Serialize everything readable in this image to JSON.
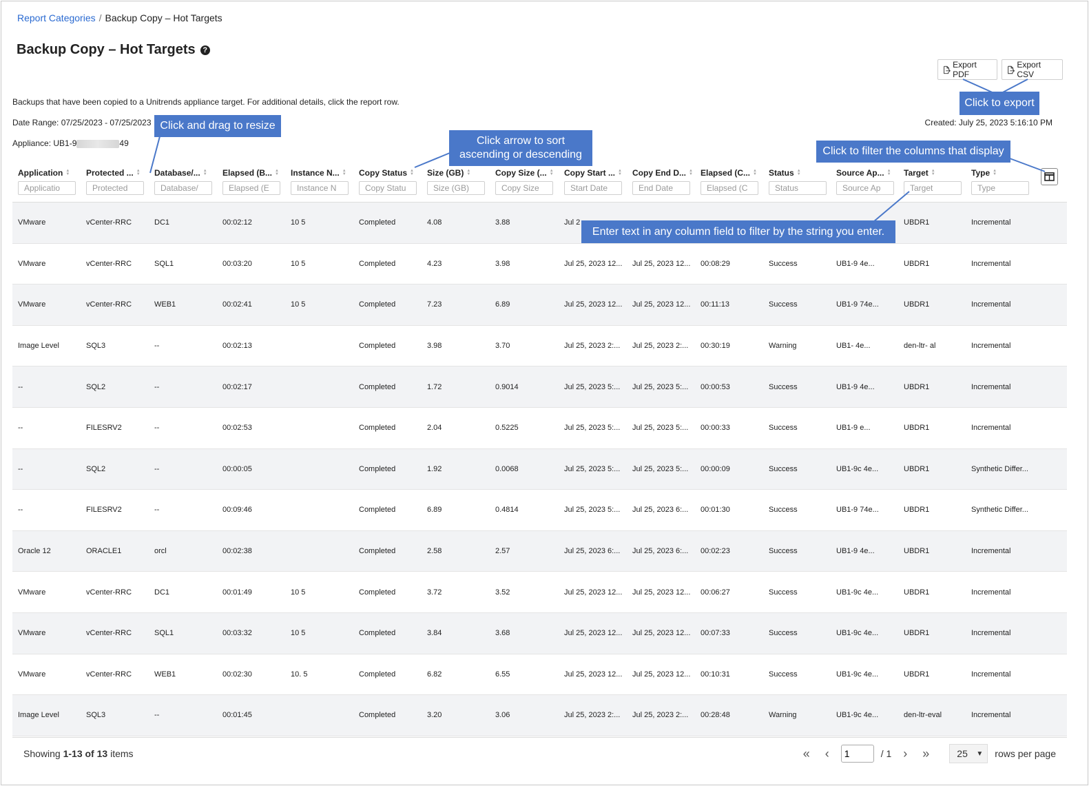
{
  "breadcrumb": {
    "parent": "Report Categories",
    "separator": "/",
    "current": "Backup Copy – Hot Targets"
  },
  "page_title": "Backup Copy – Hot Targets",
  "help_glyph": "?",
  "export": {
    "pdf_label": "Export PDF",
    "csv_label": "Export CSV"
  },
  "info": {
    "description": "Backups that have been copied to a Unitrends appliance target. For additional details, click the report row.",
    "date_range": "Date Range: 07/25/2023 - 07/25/2023",
    "appliance_prefix": "Appliance: UB1-9",
    "appliance_suffix": "49",
    "created": "Created: July 25, 2023 5:16:10 PM"
  },
  "callouts": {
    "export": "Click to export",
    "resize": "Click and drag to resize",
    "sort": "Click arrow to sort ascending or descending",
    "columns": "Click to filter the columns that display",
    "filter": "Enter text in any column field to filter by the string you enter."
  },
  "columns": [
    {
      "label": "Application",
      "placeholder": "Applicatio"
    },
    {
      "label": "Protected ...",
      "placeholder": "Protected"
    },
    {
      "label": "Database/...",
      "placeholder": "Database/"
    },
    {
      "label": "Elapsed (B...",
      "placeholder": "Elapsed (E"
    },
    {
      "label": "Instance N...",
      "placeholder": "Instance N"
    },
    {
      "label": "Copy Status",
      "placeholder": "Copy Statu"
    },
    {
      "label": "Size (GB)",
      "placeholder": "Size (GB)"
    },
    {
      "label": "Copy Size (...",
      "placeholder": "Copy Size"
    },
    {
      "label": "Copy Start ...",
      "placeholder": "Start Date"
    },
    {
      "label": "Copy End D...",
      "placeholder": "End Date"
    },
    {
      "label": "Elapsed (C...",
      "placeholder": "Elapsed (C"
    },
    {
      "label": "Status",
      "placeholder": "Status"
    },
    {
      "label": "Source Ap...",
      "placeholder": "Source Ap"
    },
    {
      "label": "Target",
      "placeholder": "Target"
    },
    {
      "label": "Type",
      "placeholder": "Type"
    }
  ],
  "rows": [
    [
      "VMware",
      "vCenter-RRC",
      "DC1",
      "00:02:12",
      "10 5",
      "Completed",
      "4.08",
      "3.88",
      "Jul 2",
      "",
      "",
      "",
      "",
      "UBDR1",
      "Incremental"
    ],
    [
      "VMware",
      "vCenter-RRC",
      "SQL1",
      "00:03:20",
      "10 5",
      "Completed",
      "4.23",
      "3.98",
      "Jul 25, 2023 12...",
      "Jul 25, 2023 12...",
      "00:08:29",
      "Success",
      "UB1-9 4e...",
      "UBDR1",
      "Incremental"
    ],
    [
      "VMware",
      "vCenter-RRC",
      "WEB1",
      "00:02:41",
      "10 5",
      "Completed",
      "7.23",
      "6.89",
      "Jul 25, 2023 12...",
      "Jul 25, 2023 12...",
      "00:11:13",
      "Success",
      "UB1-9 74e...",
      "UBDR1",
      "Incremental"
    ],
    [
      "Image Level",
      "SQL3",
      "--",
      "00:02:13",
      "",
      "Completed",
      "3.98",
      "3.70",
      "Jul 25, 2023 2:...",
      "Jul 25, 2023 2:...",
      "00:30:19",
      "Warning",
      "UB1- 4e...",
      "den-ltr- al",
      "Incremental"
    ],
    [
      "--",
      "SQL2",
      "--",
      "00:02:17",
      "",
      "Completed",
      "1.72",
      "0.9014",
      "Jul 25, 2023 5:...",
      "Jul 25, 2023 5:...",
      "00:00:53",
      "Success",
      "UB1-9 4e...",
      "UBDR1",
      "Incremental"
    ],
    [
      "--",
      "FILESRV2",
      "--",
      "00:02:53",
      "",
      "Completed",
      "2.04",
      "0.5225",
      "Jul 25, 2023 5:...",
      "Jul 25, 2023 5:...",
      "00:00:33",
      "Success",
      "UB1-9 e...",
      "UBDR1",
      "Incremental"
    ],
    [
      "--",
      "SQL2",
      "--",
      "00:00:05",
      "",
      "Completed",
      "1.92",
      "0.0068",
      "Jul 25, 2023 5:...",
      "Jul 25, 2023 5:...",
      "00:00:09",
      "Success",
      "UB1-9c 4e...",
      "UBDR1",
      "Synthetic Differ..."
    ],
    [
      "--",
      "FILESRV2",
      "--",
      "00:09:46",
      "",
      "Completed",
      "6.89",
      "0.4814",
      "Jul 25, 2023 5:...",
      "Jul 25, 2023 6:...",
      "00:01:30",
      "Success",
      "UB1-9 74e...",
      "UBDR1",
      "Synthetic Differ..."
    ],
    [
      "Oracle 12",
      "ORACLE1",
      "orcl",
      "00:02:38",
      "",
      "Completed",
      "2.58",
      "2.57",
      "Jul 25, 2023 6:...",
      "Jul 25, 2023 6:...",
      "00:02:23",
      "Success",
      "UB1-9 4e...",
      "UBDR1",
      "Incremental"
    ],
    [
      "VMware",
      "vCenter-RRC",
      "DC1",
      "00:01:49",
      "10 5",
      "Completed",
      "3.72",
      "3.52",
      "Jul 25, 2023 12...",
      "Jul 25, 2023 12...",
      "00:06:27",
      "Success",
      "UB1-9c 4e...",
      "UBDR1",
      "Incremental"
    ],
    [
      "VMware",
      "vCenter-RRC",
      "SQL1",
      "00:03:32",
      "10 5",
      "Completed",
      "3.84",
      "3.68",
      "Jul 25, 2023 12...",
      "Jul 25, 2023 12...",
      "00:07:33",
      "Success",
      "UB1-9c 4e...",
      "UBDR1",
      "Incremental"
    ],
    [
      "VMware",
      "vCenter-RRC",
      "WEB1",
      "00:02:30",
      "10. 5",
      "Completed",
      "6.82",
      "6.55",
      "Jul 25, 2023 12...",
      "Jul 25, 2023 12...",
      "00:10:31",
      "Success",
      "UB1-9c 4e...",
      "UBDR1",
      "Incremental"
    ],
    [
      "Image Level",
      "SQL3",
      "--",
      "00:01:45",
      "",
      "Completed",
      "3.20",
      "3.06",
      "Jul 25, 2023 2:...",
      "Jul 25, 2023 2:...",
      "00:28:48",
      "Warning",
      "UB1-9c 4e...",
      "den-ltr-eval",
      "Incremental"
    ]
  ],
  "footer": {
    "showing_prefix": "Showing ",
    "showing_range": "1-13 of 13",
    "showing_suffix": " items",
    "page_value": "1",
    "page_total": "/ 1",
    "rows_per_page_value": "25",
    "rows_per_page_label": "rows per page"
  },
  "colors": {
    "link": "#2a6ad1",
    "callout": "#4a78c9",
    "row_alt": "#f2f3f5"
  }
}
